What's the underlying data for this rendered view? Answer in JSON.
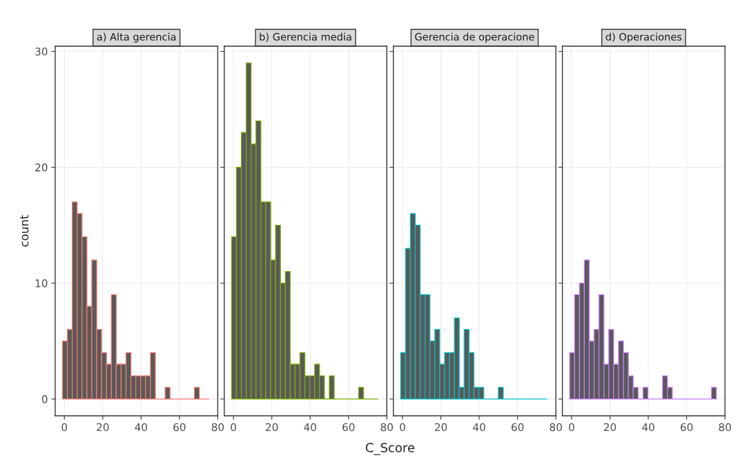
{
  "chart_data": [
    {
      "type": "histogram",
      "title": "a) Alta gerencia",
      "ylabel": "count",
      "color": "#f8766d",
      "bins": [
        -1,
        1.55,
        4.1,
        6.65,
        9.2,
        11.75,
        14.3,
        16.85,
        19.4,
        21.95,
        24.5,
        27.05,
        29.6,
        32.15,
        34.7,
        37.25,
        39.8,
        42.35,
        44.9,
        47.45,
        50,
        52.55,
        55.1,
        57.65,
        60.2,
        62.75,
        65.3,
        67.85,
        70.4,
        72.95,
        75.5
      ],
      "values": [
        5,
        6,
        17,
        16,
        14,
        8,
        12,
        6,
        4,
        3,
        9,
        3,
        3,
        4,
        2,
        2,
        2,
        2,
        4,
        0,
        0,
        1,
        0,
        0,
        0,
        0,
        0,
        1,
        0,
        0
      ],
      "xlim": [
        -4.8,
        80
      ],
      "xticks": [
        0,
        20,
        40,
        60,
        80
      ],
      "ylim": [
        -1.45,
        30.45
      ],
      "yticks": [
        0,
        10,
        20,
        30
      ],
      "grid": true
    },
    {
      "type": "histogram",
      "title": "b) Gerencia media",
      "xlabel": "C_Score",
      "color": "#7cae00",
      "bins": [
        -1,
        1.55,
        4.1,
        6.65,
        9.2,
        11.75,
        14.3,
        16.85,
        19.4,
        21.95,
        24.5,
        27.05,
        29.6,
        32.15,
        34.7,
        37.25,
        39.8,
        42.35,
        44.9,
        47.45,
        50,
        52.55,
        55.1,
        57.65,
        60.2,
        62.75,
        65.3,
        67.85,
        70.4,
        72.95,
        75.5
      ],
      "values": [
        14,
        20,
        23,
        29,
        22,
        24,
        17,
        17,
        12,
        15,
        10,
        11,
        3,
        3,
        4,
        2,
        2,
        3,
        2,
        0,
        2,
        0,
        0,
        0,
        0,
        0,
        1,
        0,
        0,
        0
      ],
      "xlim": [
        -4.8,
        80
      ],
      "xticks": [
        0,
        20,
        40,
        60,
        80
      ],
      "ylim": [
        -1.45,
        30.45
      ],
      "yticks": [
        0,
        10,
        20,
        30
      ],
      "grid": true,
      "tick_labels": "x"
    },
    {
      "type": "histogram",
      "title": "Gerencia de operacione",
      "color": "#00bfc4",
      "bins": [
        -1,
        1.55,
        4.1,
        6.65,
        9.2,
        11.75,
        14.3,
        16.85,
        19.4,
        21.95,
        24.5,
        27.05,
        29.6,
        32.15,
        34.7,
        37.25,
        39.8,
        42.35,
        44.9,
        47.45,
        50,
        52.55,
        55.1,
        57.65,
        60.2,
        62.75,
        65.3,
        67.85,
        70.4,
        72.95,
        75.5
      ],
      "values": [
        4,
        13,
        16,
        15,
        9,
        9,
        5,
        6,
        3,
        4,
        4,
        7,
        1,
        6,
        4,
        1,
        1,
        0,
        0,
        0,
        1,
        0,
        0,
        0,
        0,
        0,
        0,
        0,
        0,
        0
      ],
      "xlim": [
        -4.8,
        80
      ],
      "xticks": [
        0,
        20,
        40,
        60,
        80
      ],
      "ylim": [
        -1.45,
        30.45
      ],
      "yticks": [
        0,
        10,
        20,
        30
      ],
      "grid": true,
      "tick_labels": "x"
    },
    {
      "type": "histogram",
      "title": "d) Operaciones",
      "color": "#c77cff",
      "bins": [
        -1,
        1.55,
        4.1,
        6.65,
        9.2,
        11.75,
        14.3,
        16.85,
        19.4,
        21.95,
        24.5,
        27.05,
        29.6,
        32.15,
        34.7,
        37.25,
        39.8,
        42.35,
        44.9,
        47.45,
        50,
        52.55,
        55.1,
        57.65,
        60.2,
        62.75,
        65.3,
        67.85,
        70.4,
        72.95,
        75.5
      ],
      "values": [
        4,
        9,
        10,
        12,
        5,
        6,
        9,
        3,
        6,
        3,
        5,
        4,
        2,
        1,
        0,
        1,
        0,
        0,
        0,
        2,
        1,
        0,
        0,
        0,
        0,
        0,
        0,
        0,
        0,
        1
      ],
      "xlim": [
        -4.8,
        80
      ],
      "xticks": [
        0,
        20,
        40,
        60,
        80
      ],
      "ylim": [
        -1.45,
        30.45
      ],
      "yticks": [
        0,
        10,
        20,
        30
      ],
      "grid": true,
      "tick_labels": "x"
    }
  ]
}
